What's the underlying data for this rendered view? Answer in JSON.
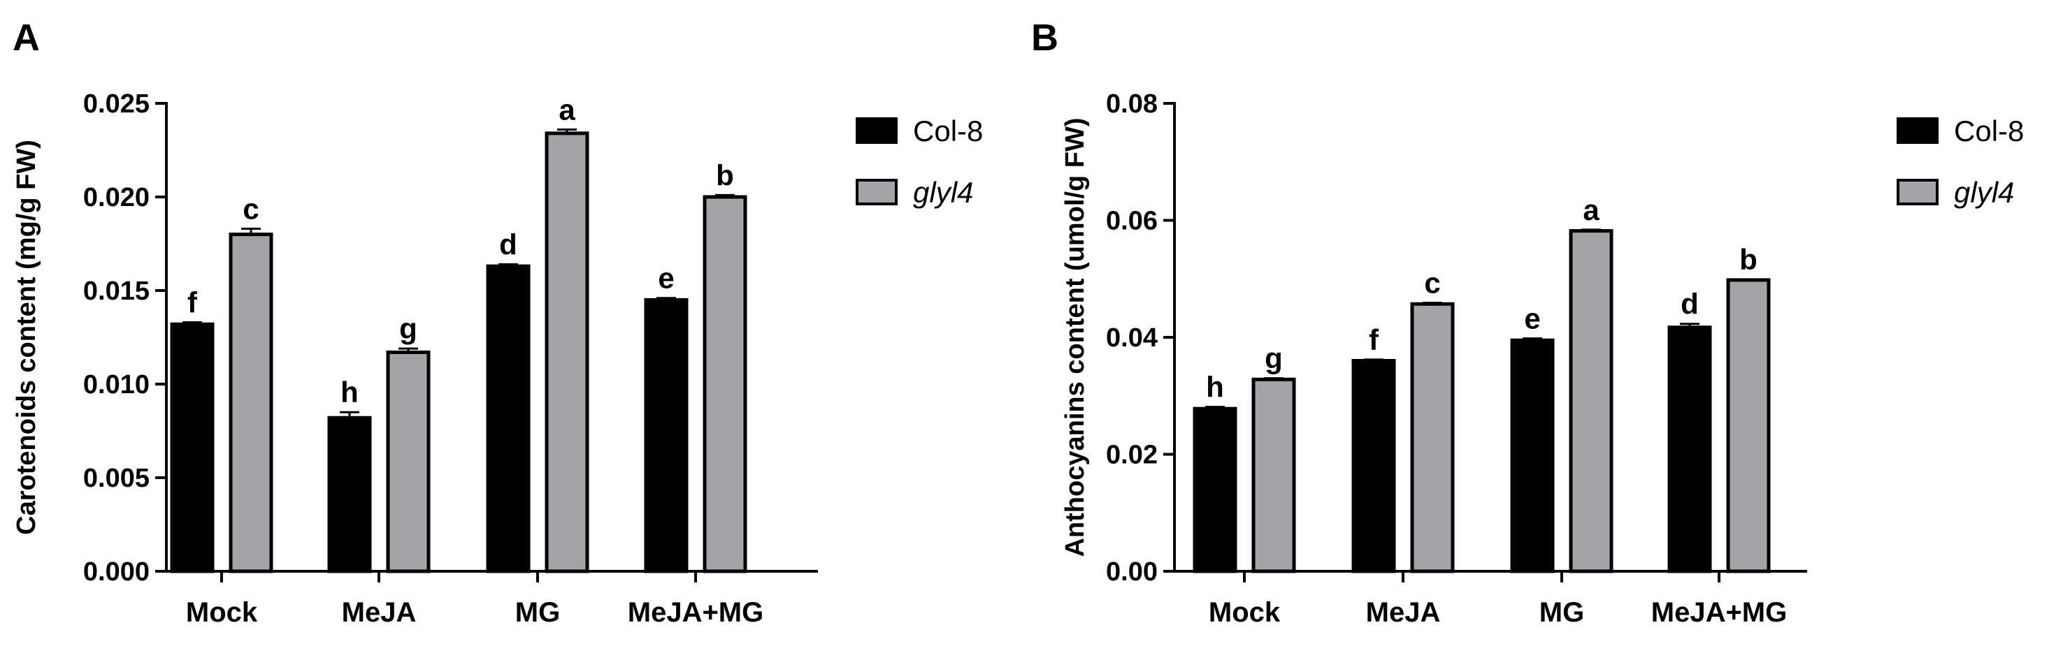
{
  "figure": {
    "colors": {
      "Col-8": "#000000",
      "glyl4": "#a3a3a8",
      "axis": "#000000",
      "error": "#000000"
    }
  },
  "chart_data": [
    {
      "type": "bar",
      "panel_label": "A",
      "title": "",
      "xlabel": "",
      "ylabel": "Carotenoids content (mg/g FW)",
      "ylim": [
        0,
        0.025
      ],
      "yticks": [
        0.0,
        0.005,
        0.01,
        0.015,
        0.02,
        0.025
      ],
      "ytick_labels": [
        "0.000",
        "0.005",
        "0.010",
        "0.015",
        "0.020",
        "0.025"
      ],
      "categories": [
        "Mock",
        "MeJA",
        "MG",
        "MeJA+MG"
      ],
      "series": [
        {
          "name": "Col-8",
          "italic": false,
          "color": "#000000",
          "values": [
            0.0132,
            0.0082,
            0.0163,
            0.0145
          ],
          "errors": [
            0.0001,
            0.0003,
            0.0001,
            0.0001
          ],
          "labels": [
            "f",
            "h",
            "d",
            "e"
          ]
        },
        {
          "name": "glyl4",
          "italic": true,
          "color": "#a3a3a8",
          "values": [
            0.018,
            0.0117,
            0.0234,
            0.02
          ],
          "errors": [
            0.0003,
            0.0002,
            0.0002,
            0.0001
          ],
          "labels": [
            "c",
            "g",
            "a",
            "b"
          ]
        }
      ],
      "legend": "top-right",
      "grid": false
    },
    {
      "type": "bar",
      "panel_label": "B",
      "title": "",
      "xlabel": "",
      "ylabel": "Anthocyanins content (umol/g FW)",
      "ylim": [
        0,
        0.08
      ],
      "yticks": [
        0.0,
        0.02,
        0.04,
        0.06,
        0.08
      ],
      "ytick_labels": [
        "0.00",
        "0.02",
        "0.04",
        "0.06",
        "0.08"
      ],
      "categories": [
        "Mock",
        "MeJA",
        "MG",
        "MeJA+MG"
      ],
      "series": [
        {
          "name": "Col-8",
          "italic": false,
          "color": "#000000",
          "values": [
            0.0278,
            0.036,
            0.0395,
            0.0417
          ],
          "errors": [
            0.0003,
            0.0002,
            0.0003,
            0.0006
          ],
          "labels": [
            "h",
            "f",
            "e",
            "d"
          ]
        },
        {
          "name": "glyl4",
          "italic": true,
          "color": "#a3a3a8",
          "values": [
            0.0328,
            0.0457,
            0.0582,
            0.0498
          ],
          "errors": [
            0.0002,
            0.0002,
            0.0002,
            0.0001
          ],
          "labels": [
            "g",
            "c",
            "a",
            "b"
          ]
        }
      ],
      "legend": "top-right",
      "grid": false
    }
  ]
}
